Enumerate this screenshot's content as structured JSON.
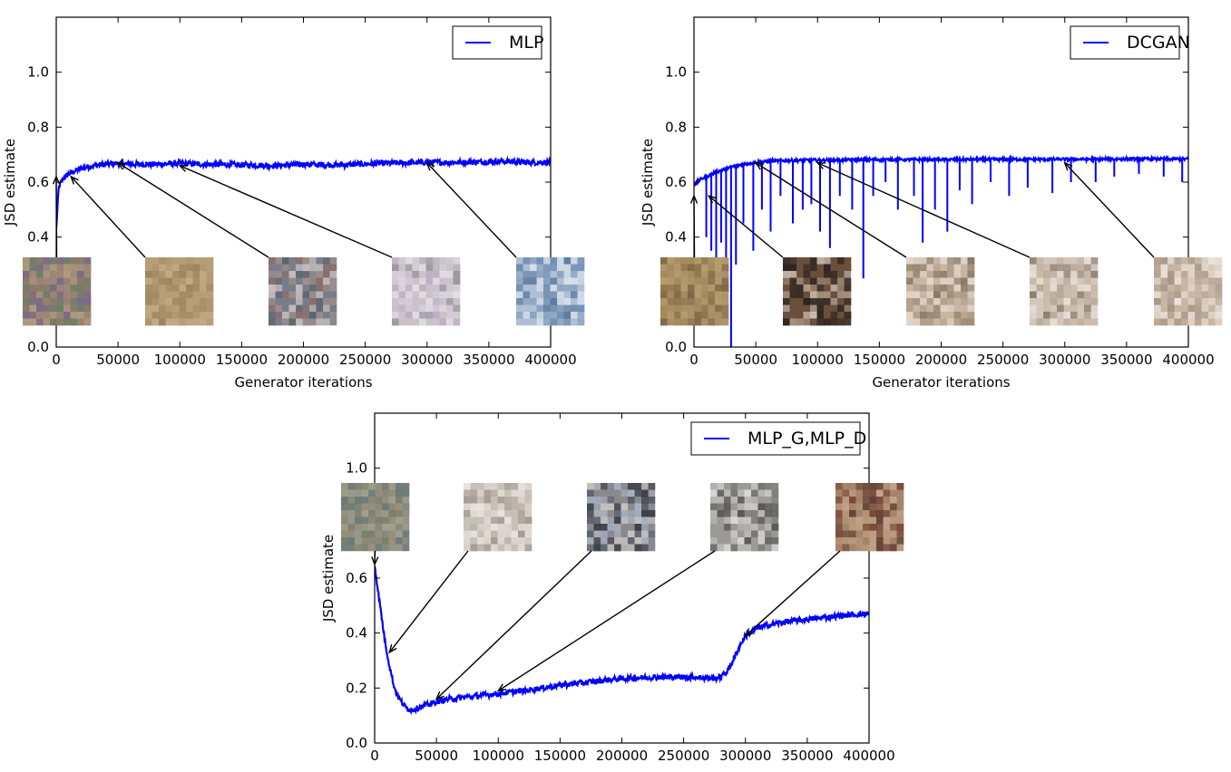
{
  "chart_data": [
    {
      "type": "line",
      "xlabel": "Generator iterations",
      "ylabel": "JSD estimate",
      "xlim": [
        0,
        400000
      ],
      "ylim": [
        0.0,
        1.2
      ],
      "xticks": [
        "0",
        "50000",
        "100000",
        "150000",
        "200000",
        "250000",
        "300000",
        "350000",
        "400000"
      ],
      "yticks": [
        "0.0",
        "0.2",
        "0.4",
        "0.6",
        "0.8",
        "1.0"
      ],
      "legend_position": "top-right",
      "series": [
        {
          "name": "MLP",
          "color": "#0000ff",
          "x": [
            0,
            2000,
            5000,
            10000,
            15000,
            20000,
            30000,
            40000,
            50000,
            60000,
            80000,
            100000,
            120000,
            150000,
            180000,
            200000,
            230000,
            260000,
            300000,
            330000,
            360000,
            380000,
            400000
          ],
          "y": [
            0.43,
            0.58,
            0.61,
            0.63,
            0.64,
            0.65,
            0.66,
            0.665,
            0.668,
            0.665,
            0.665,
            0.668,
            0.665,
            0.663,
            0.66,
            0.665,
            0.662,
            0.668,
            0.672,
            0.672,
            0.676,
            0.672,
            0.672
          ],
          "noise": 0.01
        }
      ],
      "annotations": [
        {
          "label": "sample-1",
          "x": 0,
          "y": 0.62,
          "thumb": "noise"
        },
        {
          "label": "sample-2",
          "x": 12000,
          "y": 0.62,
          "thumb": "tan"
        },
        {
          "label": "sample-3",
          "x": 50000,
          "y": 0.67,
          "thumb": "abstract"
        },
        {
          "label": "sample-4",
          "x": 100000,
          "y": 0.66,
          "thumb": "pastel"
        },
        {
          "label": "sample-5",
          "x": 300000,
          "y": 0.67,
          "thumb": "blue"
        }
      ]
    },
    {
      "type": "line",
      "xlabel": "Generator iterations",
      "ylabel": "JSD estimate",
      "xlim": [
        0,
        400000
      ],
      "ylim": [
        0.0,
        1.2
      ],
      "xticks": [
        "0",
        "50000",
        "100000",
        "150000",
        "200000",
        "250000",
        "300000",
        "350000",
        "400000"
      ],
      "yticks": [
        "0.0",
        "0.2",
        "0.4",
        "0.6",
        "0.8",
        "1.0"
      ],
      "legend_position": "top-right",
      "series": [
        {
          "name": "DCGAN",
          "color": "#0000ff",
          "x": [
            0,
            5000,
            10000,
            20000,
            30000,
            40000,
            50000,
            70000,
            100000,
            150000,
            200000,
            250000,
            300000,
            350000,
            400000
          ],
          "y": [
            0.59,
            0.61,
            0.62,
            0.64,
            0.655,
            0.665,
            0.672,
            0.678,
            0.68,
            0.682,
            0.682,
            0.683,
            0.683,
            0.684,
            0.684
          ],
          "noise": 0.005,
          "spikes": [
            {
              "x": 10000,
              "y": 0.4
            },
            {
              "x": 14000,
              "y": 0.35
            },
            {
              "x": 18000,
              "y": 0.3
            },
            {
              "x": 22000,
              "y": 0.38
            },
            {
              "x": 26000,
              "y": 0.32
            },
            {
              "x": 30000,
              "y": -0.1
            },
            {
              "x": 34000,
              "y": 0.3
            },
            {
              "x": 40000,
              "y": 0.45
            },
            {
              "x": 48000,
              "y": 0.35
            },
            {
              "x": 55000,
              "y": 0.5
            },
            {
              "x": 62000,
              "y": 0.42
            },
            {
              "x": 70000,
              "y": 0.55
            },
            {
              "x": 80000,
              "y": 0.45
            },
            {
              "x": 88000,
              "y": 0.5
            },
            {
              "x": 95000,
              "y": 0.52
            },
            {
              "x": 102000,
              "y": 0.42
            },
            {
              "x": 110000,
              "y": 0.36
            },
            {
              "x": 118000,
              "y": 0.55
            },
            {
              "x": 128000,
              "y": 0.5
            },
            {
              "x": 137000,
              "y": 0.25
            },
            {
              "x": 145000,
              "y": 0.55
            },
            {
              "x": 155000,
              "y": 0.6
            },
            {
              "x": 165000,
              "y": 0.5
            },
            {
              "x": 178000,
              "y": 0.55
            },
            {
              "x": 185000,
              "y": 0.38
            },
            {
              "x": 195000,
              "y": 0.5
            },
            {
              "x": 205000,
              "y": 0.42
            },
            {
              "x": 215000,
              "y": 0.57
            },
            {
              "x": 225000,
              "y": 0.52
            },
            {
              "x": 240000,
              "y": 0.6
            },
            {
              "x": 255000,
              "y": 0.55
            },
            {
              "x": 270000,
              "y": 0.58
            },
            {
              "x": 290000,
              "y": 0.56
            },
            {
              "x": 305000,
              "y": 0.6
            },
            {
              "x": 325000,
              "y": 0.6
            },
            {
              "x": 340000,
              "y": 0.62
            },
            {
              "x": 360000,
              "y": 0.63
            },
            {
              "x": 380000,
              "y": 0.62
            },
            {
              "x": 395000,
              "y": 0.6
            }
          ]
        }
      ],
      "annotations": [
        {
          "label": "sample-1",
          "x": 0,
          "y": 0.55,
          "thumb": "brownblur"
        },
        {
          "label": "sample-2",
          "x": 12000,
          "y": 0.55,
          "thumb": "darkroom"
        },
        {
          "label": "sample-3",
          "x": 50000,
          "y": 0.67,
          "thumb": "bedroom"
        },
        {
          "label": "sample-4",
          "x": 100000,
          "y": 0.67,
          "thumb": "bedroom2"
        },
        {
          "label": "sample-5",
          "x": 300000,
          "y": 0.67,
          "thumb": "bedroom3"
        }
      ]
    },
    {
      "type": "line",
      "xlabel": "",
      "ylabel": "JSD estimate",
      "xlim": [
        0,
        400000
      ],
      "ylim": [
        0.0,
        1.2
      ],
      "xticks": [
        "0",
        "50000",
        "100000",
        "150000",
        "200000",
        "250000",
        "300000",
        "350000",
        "400000"
      ],
      "yticks": [
        "0.0",
        "0.2",
        "0.4",
        "0.6",
        "0.8",
        "1.0"
      ],
      "legend_position": "top-right",
      "series": [
        {
          "name": "MLP_G,MLP_D",
          "color": "#0000ff",
          "x": [
            0,
            2000,
            5000,
            8000,
            12000,
            16000,
            20000,
            25000,
            30000,
            40000,
            50000,
            60000,
            80000,
            100000,
            120000,
            150000,
            180000,
            200000,
            230000,
            260000,
            275000,
            280000,
            285000,
            290000,
            295000,
            300000,
            310000,
            330000,
            360000,
            380000,
            400000
          ],
          "y": [
            0.65,
            0.58,
            0.48,
            0.38,
            0.28,
            0.2,
            0.16,
            0.13,
            0.12,
            0.135,
            0.15,
            0.16,
            0.17,
            0.18,
            0.19,
            0.21,
            0.225,
            0.235,
            0.24,
            0.24,
            0.235,
            0.24,
            0.26,
            0.3,
            0.35,
            0.39,
            0.42,
            0.44,
            0.455,
            0.465,
            0.47
          ],
          "noise": 0.01
        }
      ],
      "annotations": [
        {
          "label": "sample-1",
          "x": 0,
          "y": 0.65,
          "thumb": "noisegray"
        },
        {
          "label": "sample-2",
          "x": 12000,
          "y": 0.33,
          "thumb": "whiteblur"
        },
        {
          "label": "sample-3",
          "x": 50000,
          "y": 0.16,
          "thumb": "bluish"
        },
        {
          "label": "sample-4",
          "x": 100000,
          "y": 0.19,
          "thumb": "grayblur"
        },
        {
          "label": "sample-5",
          "x": 300000,
          "y": 0.39,
          "thumb": "reddish"
        }
      ]
    }
  ]
}
